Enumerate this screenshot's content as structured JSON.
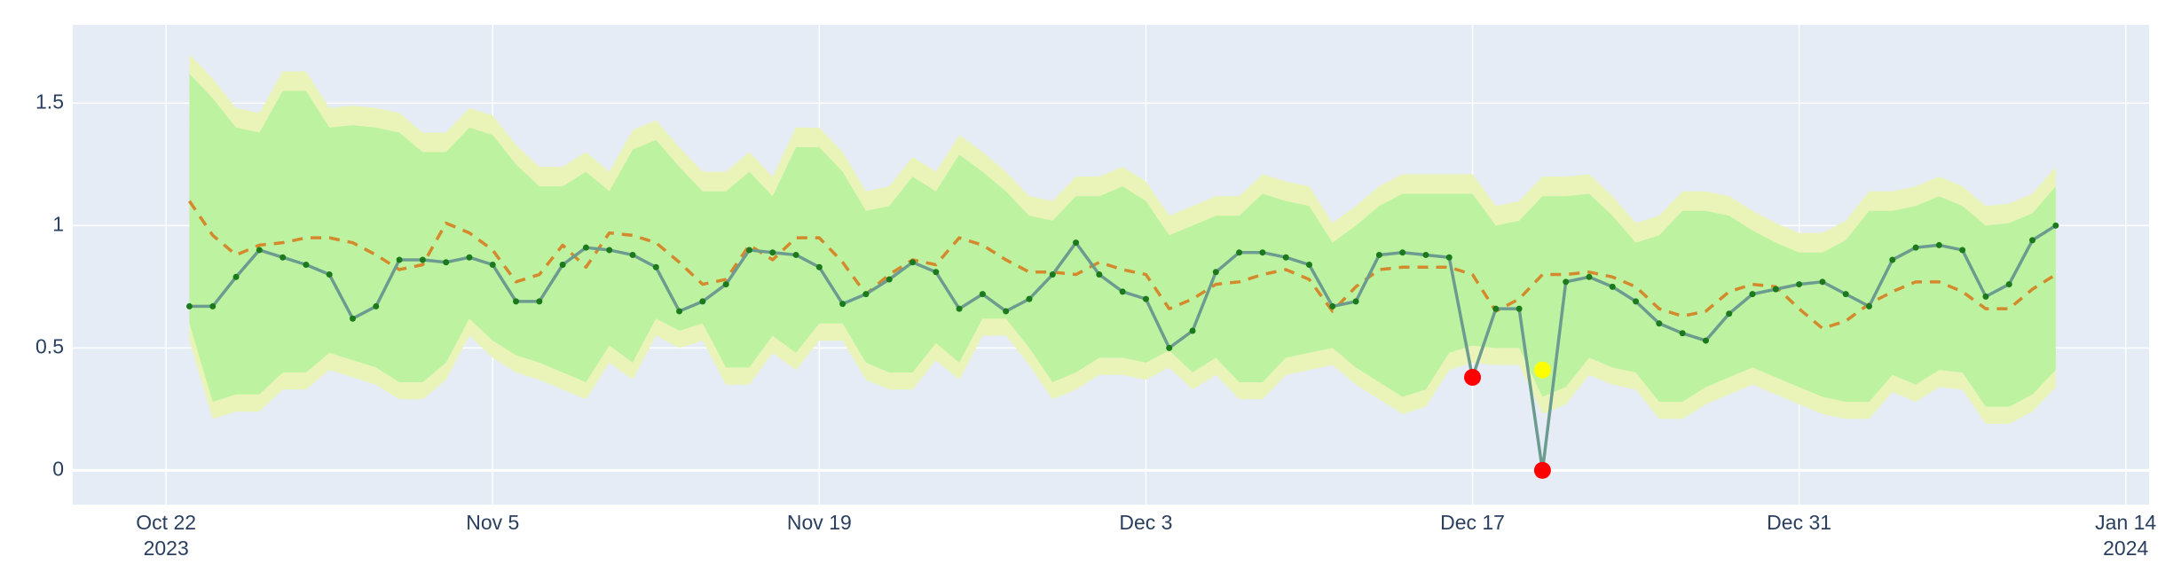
{
  "chart_data": {
    "type": "line",
    "x": [
      "2023-10-23",
      "2023-10-24",
      "2023-10-25",
      "2023-10-26",
      "2023-10-27",
      "2023-10-28",
      "2023-10-29",
      "2023-10-30",
      "2023-10-31",
      "2023-11-01",
      "2023-11-02",
      "2023-11-03",
      "2023-11-04",
      "2023-11-05",
      "2023-11-06",
      "2023-11-07",
      "2023-11-08",
      "2023-11-09",
      "2023-11-10",
      "2023-11-11",
      "2023-11-12",
      "2023-11-13",
      "2023-11-14",
      "2023-11-15",
      "2023-11-16",
      "2023-11-17",
      "2023-11-18",
      "2023-11-19",
      "2023-11-20",
      "2023-11-21",
      "2023-11-22",
      "2023-11-23",
      "2023-11-24",
      "2023-11-25",
      "2023-11-26",
      "2023-11-27",
      "2023-11-28",
      "2023-11-29",
      "2023-11-30",
      "2023-12-01",
      "2023-12-02",
      "2023-12-03",
      "2023-12-04",
      "2023-12-05",
      "2023-12-06",
      "2023-12-07",
      "2023-12-08",
      "2023-12-09",
      "2023-12-10",
      "2023-12-11",
      "2023-12-12",
      "2023-12-13",
      "2023-12-14",
      "2023-12-15",
      "2023-12-16",
      "2023-12-17",
      "2023-12-18",
      "2023-12-19",
      "2023-12-20",
      "2023-12-21",
      "2023-12-22",
      "2023-12-23",
      "2023-12-24",
      "2023-12-25",
      "2023-12-26",
      "2023-12-27",
      "2023-12-28",
      "2023-12-29",
      "2023-12-30",
      "2023-12-31",
      "2024-01-01",
      "2024-01-02",
      "2024-01-03",
      "2024-01-04",
      "2024-01-05",
      "2024-01-06",
      "2024-01-07",
      "2024-01-08",
      "2024-01-09",
      "2024-01-10",
      "2024-01-11"
    ],
    "xlim": [
      "2023-10-18",
      "2024-01-15"
    ],
    "xticks": [
      {
        "value": "2023-10-22",
        "label": "Oct 22",
        "year": "2023"
      },
      {
        "value": "2023-11-05",
        "label": "Nov 5"
      },
      {
        "value": "2023-11-19",
        "label": "Nov 19"
      },
      {
        "value": "2023-12-03",
        "label": "Dec 3"
      },
      {
        "value": "2023-12-17",
        "label": "Dec 17"
      },
      {
        "value": "2023-12-31",
        "label": "Dec 31"
      },
      {
        "value": "2024-01-14",
        "label": "Jan 14",
        "year": "2024"
      }
    ],
    "ylim": [
      -0.14,
      1.82
    ],
    "yticks": [
      0,
      0.5,
      1,
      1.5
    ],
    "grid": true,
    "bands": [
      {
        "color": "#eaf4b9",
        "upper": [
          1.7,
          1.6,
          1.48,
          1.46,
          1.63,
          1.63,
          1.48,
          1.49,
          1.48,
          1.46,
          1.38,
          1.38,
          1.48,
          1.45,
          1.33,
          1.24,
          1.24,
          1.3,
          1.22,
          1.39,
          1.43,
          1.32,
          1.22,
          1.22,
          1.3,
          1.2,
          1.4,
          1.4,
          1.3,
          1.14,
          1.16,
          1.28,
          1.22,
          1.37,
          1.3,
          1.22,
          1.12,
          1.1,
          1.2,
          1.2,
          1.24,
          1.18,
          1.04,
          1.08,
          1.12,
          1.12,
          1.21,
          1.18,
          1.16,
          1.01,
          1.08,
          1.16,
          1.21,
          1.21,
          1.21,
          1.21,
          1.08,
          1.1,
          1.2,
          1.2,
          1.21,
          1.12,
          1.01,
          1.04,
          1.14,
          1.14,
          1.12,
          1.06,
          1.01,
          0.97,
          0.97,
          1.02,
          1.14,
          1.14,
          1.16,
          1.2,
          1.16,
          1.08,
          1.09,
          1.13,
          1.24
        ],
        "lower": [
          0.53,
          0.21,
          0.24,
          0.24,
          0.33,
          0.33,
          0.41,
          0.38,
          0.35,
          0.29,
          0.29,
          0.37,
          0.55,
          0.46,
          0.4,
          0.37,
          0.33,
          0.29,
          0.44,
          0.37,
          0.55,
          0.5,
          0.53,
          0.35,
          0.35,
          0.48,
          0.41,
          0.53,
          0.53,
          0.37,
          0.33,
          0.33,
          0.45,
          0.37,
          0.55,
          0.55,
          0.43,
          0.29,
          0.33,
          0.39,
          0.39,
          0.37,
          0.42,
          0.33,
          0.39,
          0.29,
          0.29,
          0.39,
          0.41,
          0.43,
          0.35,
          0.29,
          0.23,
          0.26,
          0.41,
          0.44,
          0.43,
          0.43,
          0.23,
          0.27,
          0.39,
          0.35,
          0.33,
          0.21,
          0.21,
          0.27,
          0.31,
          0.35,
          0.31,
          0.27,
          0.23,
          0.21,
          0.21,
          0.32,
          0.28,
          0.34,
          0.33,
          0.19,
          0.19,
          0.24,
          0.34
        ]
      },
      {
        "color": "#bdf3a0",
        "upper": [
          1.62,
          1.52,
          1.4,
          1.38,
          1.55,
          1.55,
          1.4,
          1.41,
          1.4,
          1.38,
          1.3,
          1.3,
          1.4,
          1.37,
          1.25,
          1.16,
          1.16,
          1.22,
          1.14,
          1.31,
          1.35,
          1.24,
          1.14,
          1.14,
          1.22,
          1.12,
          1.32,
          1.32,
          1.22,
          1.06,
          1.08,
          1.2,
          1.14,
          1.29,
          1.22,
          1.14,
          1.04,
          1.02,
          1.12,
          1.12,
          1.16,
          1.1,
          0.96,
          1.0,
          1.04,
          1.04,
          1.13,
          1.1,
          1.08,
          0.93,
          1.0,
          1.08,
          1.13,
          1.13,
          1.13,
          1.13,
          1.0,
          1.02,
          1.12,
          1.12,
          1.13,
          1.04,
          0.93,
          0.96,
          1.06,
          1.06,
          1.04,
          0.98,
          0.93,
          0.89,
          0.89,
          0.94,
          1.06,
          1.06,
          1.08,
          1.12,
          1.08,
          1.0,
          1.01,
          1.05,
          1.16
        ],
        "lower": [
          0.6,
          0.28,
          0.31,
          0.31,
          0.4,
          0.4,
          0.48,
          0.45,
          0.42,
          0.36,
          0.36,
          0.44,
          0.62,
          0.53,
          0.47,
          0.44,
          0.4,
          0.36,
          0.51,
          0.44,
          0.62,
          0.57,
          0.6,
          0.42,
          0.42,
          0.55,
          0.48,
          0.6,
          0.6,
          0.44,
          0.4,
          0.4,
          0.52,
          0.44,
          0.62,
          0.62,
          0.5,
          0.36,
          0.4,
          0.46,
          0.46,
          0.44,
          0.49,
          0.4,
          0.46,
          0.36,
          0.36,
          0.46,
          0.48,
          0.5,
          0.42,
          0.36,
          0.3,
          0.33,
          0.48,
          0.51,
          0.5,
          0.5,
          0.3,
          0.34,
          0.46,
          0.42,
          0.4,
          0.28,
          0.28,
          0.34,
          0.38,
          0.42,
          0.38,
          0.34,
          0.3,
          0.28,
          0.28,
          0.39,
          0.35,
          0.41,
          0.4,
          0.26,
          0.26,
          0.31,
          0.41
        ]
      }
    ],
    "series": [
      {
        "color": "#d4892c",
        "dash": true,
        "values": [
          1.1,
          0.96,
          0.88,
          0.92,
          0.93,
          0.95,
          0.95,
          0.93,
          0.88,
          0.82,
          0.84,
          1.01,
          0.97,
          0.9,
          0.77,
          0.8,
          0.92,
          0.83,
          0.97,
          0.96,
          0.93,
          0.85,
          0.76,
          0.78,
          0.92,
          0.86,
          0.95,
          0.95,
          0.85,
          0.72,
          0.8,
          0.86,
          0.84,
          0.95,
          0.92,
          0.86,
          0.81,
          0.81,
          0.8,
          0.85,
          0.82,
          0.8,
          0.66,
          0.7,
          0.76,
          0.77,
          0.8,
          0.82,
          0.78,
          0.65,
          0.75,
          0.82,
          0.83,
          0.83,
          0.83,
          0.8,
          0.65,
          0.7,
          0.8,
          0.8,
          0.81,
          0.79,
          0.75,
          0.66,
          0.63,
          0.65,
          0.73,
          0.76,
          0.75,
          0.66,
          0.58,
          0.61,
          0.68,
          0.73,
          0.77,
          0.77,
          0.73,
          0.66,
          0.66,
          0.74,
          0.8
        ]
      },
      {
        "color": "#6c9c8f",
        "marker_color": "#1b7a1b",
        "values": [
          0.67,
          0.67,
          0.79,
          0.9,
          0.87,
          0.84,
          0.8,
          0.62,
          0.67,
          0.86,
          0.86,
          0.85,
          0.87,
          0.84,
          0.69,
          0.69,
          0.84,
          0.91,
          0.9,
          0.88,
          0.83,
          0.65,
          0.69,
          0.76,
          0.9,
          0.89,
          0.88,
          0.83,
          0.68,
          0.72,
          0.78,
          0.85,
          0.81,
          0.66,
          0.72,
          0.65,
          0.7,
          0.8,
          0.93,
          0.8,
          0.73,
          0.7,
          0.5,
          0.57,
          0.81,
          0.89,
          0.89,
          0.87,
          0.84,
          0.67,
          0.69,
          0.88,
          0.89,
          0.88,
          0.87,
          0.38,
          0.66,
          0.66,
          0,
          0.77,
          0.79,
          0.75,
          0.69,
          0.6,
          0.56,
          0.53,
          0.64,
          0.72,
          0.74,
          0.76,
          0.77,
          0.72,
          0.67,
          0.86,
          0.91,
          0.92,
          0.9,
          0.71,
          0.76,
          0.94,
          1.0
        ]
      }
    ],
    "anomalies": [
      {
        "color": "#ff0000",
        "x": [
          "2023-12-17",
          "2023-12-20"
        ],
        "values": [
          0.38,
          0
        ]
      },
      {
        "color": "#ffff00",
        "x": [
          "2023-12-20"
        ],
        "values": [
          0.41
        ]
      }
    ]
  }
}
